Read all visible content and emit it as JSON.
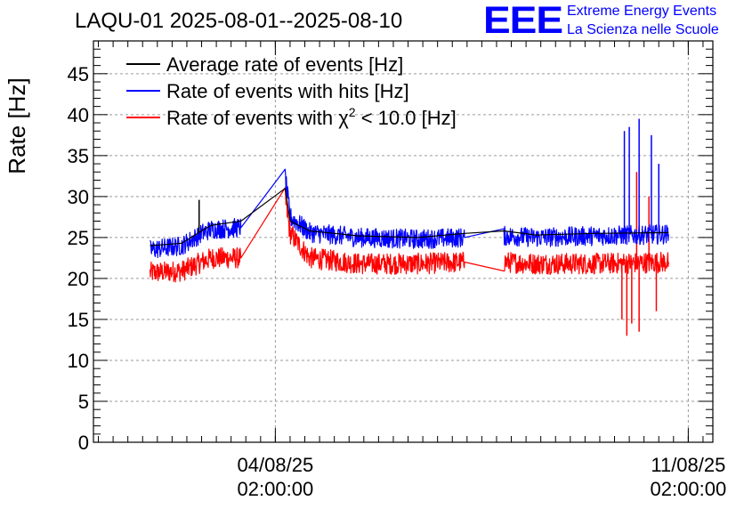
{
  "header": {
    "title": "LAQU-01 2025-08-01--2025-08-10",
    "logo_text": "EEE",
    "brand_line_1": "Extreme Energy Events",
    "brand_line_2": "La Scienza nelle Scuole"
  },
  "chart_data": {
    "type": "line",
    "ylabel": "Rate [Hz]",
    "xlabel": "",
    "ylim": [
      0,
      49
    ],
    "yticks": [
      0,
      5,
      10,
      15,
      20,
      25,
      30,
      35,
      40,
      45
    ],
    "xlim_days_note_free": null,
    "x_ticks": [
      {
        "date": "2025-08-04T02:00:00",
        "label_line1": "04/08/25",
        "label_line2": "02:00:00"
      },
      {
        "date": "2025-08-11T02:00:00",
        "label_line1": "11/08/25",
        "label_line2": "02:00:00"
      }
    ],
    "xlim": [
      "2025-08-01T00:00:00",
      "2025-08-11T12:00:00"
    ],
    "grid": true,
    "legend_position": "top-left",
    "legend": [
      {
        "text": "Average rate of events [Hz]",
        "color": "#000000"
      },
      {
        "text": "Rate of events with hits [Hz]",
        "color": "#0000ff"
      },
      {
        "text_prefix": "Rate of events with ",
        "symbol": "χ",
        "superscript": "2",
        "text_suffix": " < 10.0 [Hz]",
        "color": "#ff0000"
      }
    ],
    "series": [
      {
        "name": "Average rate of events [Hz]",
        "color": "#000000",
        "x": [
          "2025-08-01T23:00:00",
          "2025-08-02T12:00:00",
          "2025-08-02T20:00:00",
          "2025-08-03T00:00:00",
          "2025-08-03T12:00:00",
          "2025-08-04T06:00:00",
          "2025-08-04T08:00:00",
          "2025-08-04T16:00:00",
          "2025-08-05T12:00:00",
          "2025-08-06T12:00:00",
          "2025-08-07T07:00:00",
          "2025-08-07T23:00:00",
          "2025-08-08T12:00:00",
          "2025-08-09T12:00:00",
          "2025-08-10T18:00:00"
        ],
        "y": [
          24.0,
          24.3,
          25.8,
          26.5,
          27.0,
          31.0,
          27.0,
          25.8,
          25.2,
          25.0,
          25.5,
          25.8,
          25.3,
          25.5,
          25.6
        ],
        "spike": {
          "x": "2025-08-02T19:00:00",
          "y": 29.6
        }
      },
      {
        "name": "Rate of events with hits [Hz]",
        "color": "#0000ff",
        "x": [
          "2025-08-01T23:00:00",
          "2025-08-02T12:00:00",
          "2025-08-02T20:00:00",
          "2025-08-03T00:00:00",
          "2025-08-03T12:00:00",
          "2025-08-04T06:00:00",
          "2025-08-04T08:00:00",
          "2025-08-04T16:00:00",
          "2025-08-05T12:00:00",
          "2025-08-06T12:00:00",
          "2025-08-07T07:00:00",
          "2025-08-07T23:00:00",
          "2025-08-08T12:00:00",
          "2025-08-09T12:00:00",
          "2025-08-10T18:00:00"
        ],
        "y": [
          23.5,
          24.0,
          25.5,
          26.0,
          26.2,
          32.5,
          27.5,
          25.6,
          25.0,
          24.8,
          25.0,
          25.2,
          25.0,
          25.2,
          25.4
        ],
        "noise": 1.2,
        "spikes": [
          {
            "x": "2025-08-10T00:00:00",
            "y": 38.0
          },
          {
            "x": "2025-08-10T02:00:00",
            "y": 38.5
          },
          {
            "x": "2025-08-10T06:00:00",
            "y": 39.5
          },
          {
            "x": "2025-08-10T11:00:00",
            "y": 37.5
          },
          {
            "x": "2025-08-10T14:00:00",
            "y": 34.0
          }
        ]
      },
      {
        "name": "Rate of events with χ2 < 10.0 [Hz]",
        "color": "#ff0000",
        "x": [
          "2025-08-01T23:00:00",
          "2025-08-02T12:00:00",
          "2025-08-02T20:00:00",
          "2025-08-03T00:00:00",
          "2025-08-03T12:00:00",
          "2025-08-04T06:00:00",
          "2025-08-04T08:00:00",
          "2025-08-04T16:00:00",
          "2025-08-05T12:00:00",
          "2025-08-06T12:00:00",
          "2025-08-07T07:00:00",
          "2025-08-07T23:00:00",
          "2025-08-08T12:00:00",
          "2025-08-09T12:00:00",
          "2025-08-10T18:00:00"
        ],
        "y": [
          20.7,
          20.9,
          22.0,
          22.5,
          22.5,
          29.8,
          25.5,
          22.5,
          21.8,
          21.8,
          22.0,
          22.0,
          21.8,
          21.8,
          22.0
        ],
        "noise": 1.3,
        "spikes": [
          {
            "x": "2025-08-09T23:00:00",
            "y": 15.0
          },
          {
            "x": "2025-08-10T01:00:00",
            "y": 13.0
          },
          {
            "x": "2025-08-10T03:00:00",
            "y": 14.5
          },
          {
            "x": "2025-08-10T05:00:00",
            "y": 33.0
          },
          {
            "x": "2025-08-10T06:00:00",
            "y": 13.5
          },
          {
            "x": "2025-08-10T13:00:00",
            "y": 16.0
          },
          {
            "x": "2025-08-10T10:00:00",
            "y": 30.0
          }
        ]
      }
    ]
  }
}
